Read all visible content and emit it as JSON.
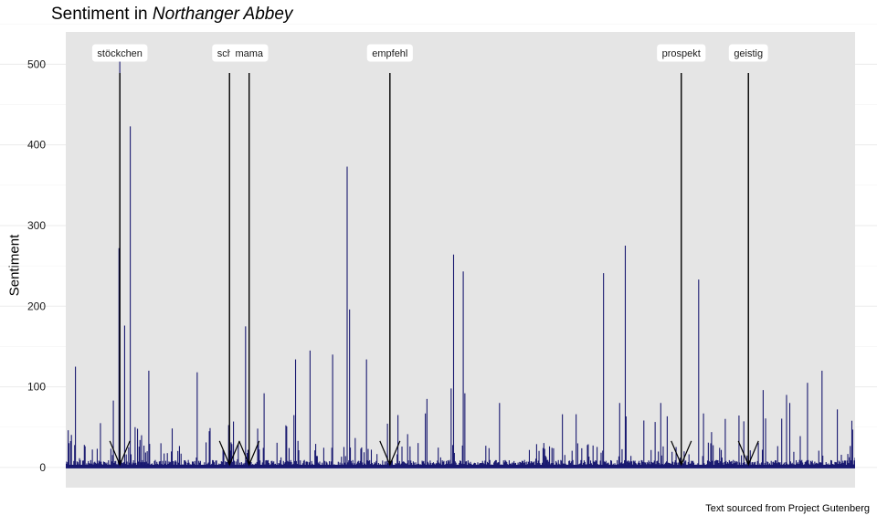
{
  "chart_data": {
    "type": "bar",
    "title_prefix": "Sentiment in ",
    "title_italic": "Northanger Abbey",
    "xlabel": "",
    "ylabel": "Sentiment",
    "caption": "Text sourced from Project Gutenberg",
    "ylim": [
      -25,
      540
    ],
    "yticks": [
      0,
      100,
      200,
      300,
      400,
      500
    ],
    "grid": true,
    "bar_color": "#191970",
    "panel_color": "#e5e5e5",
    "n_positions": 980,
    "peaks": [
      {
        "x": 12,
        "y": 125
      },
      {
        "x": 43,
        "y": 55
      },
      {
        "x": 59,
        "y": 83
      },
      {
        "x": 66,
        "y": 272
      },
      {
        "x": 67,
        "y": 505
      },
      {
        "x": 73,
        "y": 176
      },
      {
        "x": 80,
        "y": 423
      },
      {
        "x": 86,
        "y": 50
      },
      {
        "x": 103,
        "y": 120
      },
      {
        "x": 94,
        "y": 40
      },
      {
        "x": 163,
        "y": 118
      },
      {
        "x": 178,
        "y": 45
      },
      {
        "x": 208,
        "y": 57
      },
      {
        "x": 223,
        "y": 175
      },
      {
        "x": 246,
        "y": 92
      },
      {
        "x": 285,
        "y": 134
      },
      {
        "x": 303,
        "y": 145
      },
      {
        "x": 331,
        "y": 140
      },
      {
        "x": 349,
        "y": 373
      },
      {
        "x": 352,
        "y": 196
      },
      {
        "x": 373,
        "y": 134
      },
      {
        "x": 412,
        "y": 65
      },
      {
        "x": 446,
        "y": 67
      },
      {
        "x": 448,
        "y": 85
      },
      {
        "x": 478,
        "y": 98
      },
      {
        "x": 481,
        "y": 264
      },
      {
        "x": 493,
        "y": 243
      },
      {
        "x": 495,
        "y": 92
      },
      {
        "x": 538,
        "y": 80
      },
      {
        "x": 616,
        "y": 66
      },
      {
        "x": 633,
        "y": 66
      },
      {
        "x": 667,
        "y": 241
      },
      {
        "x": 687,
        "y": 80
      },
      {
        "x": 694,
        "y": 275
      },
      {
        "x": 738,
        "y": 80
      },
      {
        "x": 785,
        "y": 233
      },
      {
        "x": 791,
        "y": 67
      },
      {
        "x": 800,
        "y": 30
      },
      {
        "x": 865,
        "y": 96
      },
      {
        "x": 894,
        "y": 90
      },
      {
        "x": 898,
        "y": 80
      },
      {
        "x": 920,
        "y": 105
      },
      {
        "x": 938,
        "y": 120
      },
      {
        "x": 957,
        "y": 72
      },
      {
        "x": 975,
        "y": 58
      }
    ],
    "annotations": [
      {
        "word": "stöckchen",
        "x": 56
      },
      {
        "word": "schru",
        "x": 190
      },
      {
        "word": "mama",
        "x": 214
      },
      {
        "word": "empfehl",
        "x": 386
      },
      {
        "word": "prospekt",
        "x": 742
      },
      {
        "word": "geistig",
        "x": 824
      }
    ]
  }
}
